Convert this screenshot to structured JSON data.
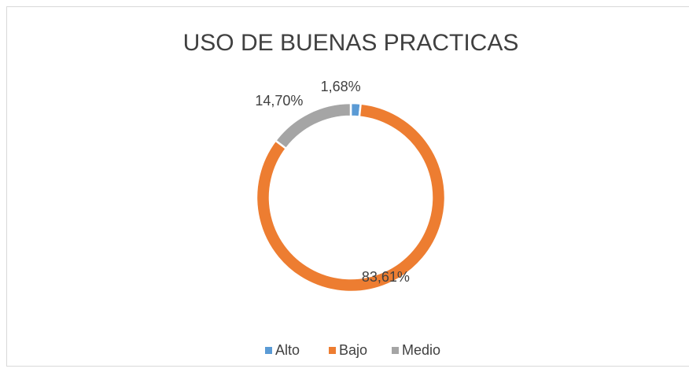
{
  "chart_data": {
    "type": "donut",
    "title": "USO DE BUENAS PRACTICAS",
    "categories": [
      "Alto",
      "Bajo",
      "Medio"
    ],
    "values": [
      1.68,
      83.61,
      14.7
    ],
    "value_labels": [
      "1,68%",
      "83,61%",
      "14,70%"
    ],
    "colors": [
      "#5B9BD5",
      "#ED7D31",
      "#A5A5A5"
    ],
    "legend": "bottom"
  }
}
